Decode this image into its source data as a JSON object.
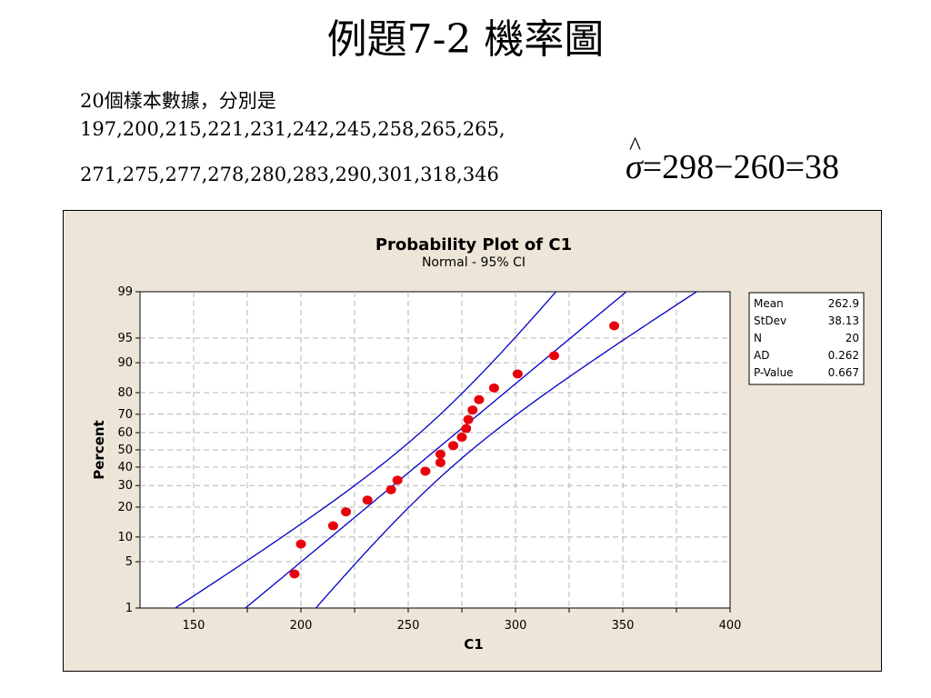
{
  "slide": {
    "title": "例題7-2  機率圖",
    "intro": "20個樣本數據，分別是",
    "values_line1": "197,200,215,221,231,242,245,258,265,265,",
    "values_line2": "271,275,277,278,280,283,290,301,318,346"
  },
  "formula": {
    "sigma": "σ",
    "hat": "^",
    "rest": "=298−260=38"
  },
  "colors": {
    "background": "#ede6d8",
    "plot_area": "#ffffff",
    "points": "#e8000b",
    "fit_lines": "#0000c8",
    "grid": "#b4b4b4"
  },
  "chart_data": {
    "type": "scatter",
    "title": "Probability Plot of C1",
    "subtitle": "Normal - 95% CI",
    "xlabel": "C1",
    "ylabel": "Percent",
    "xlim": [
      125,
      400
    ],
    "x_ticks": [
      150,
      200,
      250,
      300,
      350,
      400
    ],
    "y_ticks": [
      1,
      5,
      10,
      20,
      30,
      40,
      50,
      60,
      70,
      80,
      90,
      95,
      99
    ],
    "y_scale": "normal-probability",
    "grid": true,
    "points": [
      {
        "x": 197,
        "y": 3.4
      },
      {
        "x": 200,
        "y": 8.3
      },
      {
        "x": 215,
        "y": 13.2
      },
      {
        "x": 221,
        "y": 18.1
      },
      {
        "x": 231,
        "y": 23.0
      },
      {
        "x": 242,
        "y": 27.9
      },
      {
        "x": 245,
        "y": 32.8
      },
      {
        "x": 258,
        "y": 37.7
      },
      {
        "x": 265,
        "y": 42.6
      },
      {
        "x": 265,
        "y": 47.5
      },
      {
        "x": 271,
        "y": 52.5
      },
      {
        "x": 275,
        "y": 57.4
      },
      {
        "x": 277,
        "y": 62.3
      },
      {
        "x": 278,
        "y": 67.2
      },
      {
        "x": 280,
        "y": 72.1
      },
      {
        "x": 283,
        "y": 77.0
      },
      {
        "x": 290,
        "y": 81.9
      },
      {
        "x": 301,
        "y": 86.8
      },
      {
        "x": 318,
        "y": 91.7
      },
      {
        "x": 346,
        "y": 96.6
      }
    ],
    "stats": [
      {
        "label": "Mean",
        "value": "262.9"
      },
      {
        "label": "StDev",
        "value": "38.13"
      },
      {
        "label": "N",
        "value": "20"
      },
      {
        "label": "AD",
        "value": "0.262"
      },
      {
        "label": "P-Value",
        "value": "0.667"
      }
    ],
    "fit": {
      "mean": 262.9,
      "stdev": 38.13,
      "n": 20,
      "ci_percent": 95
    }
  }
}
